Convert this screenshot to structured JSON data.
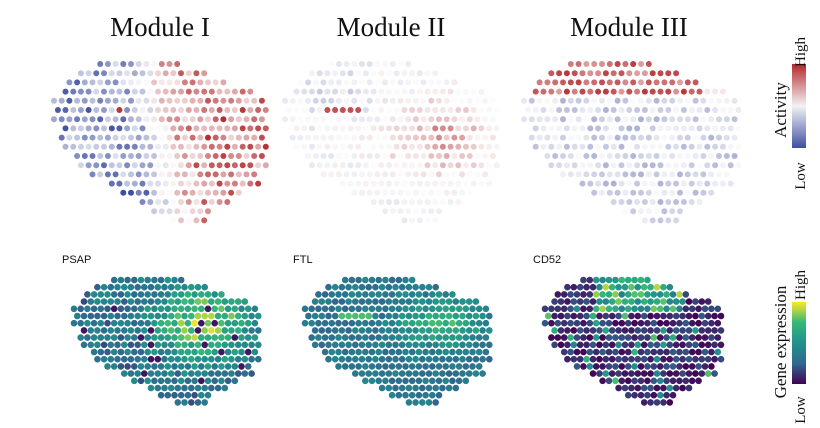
{
  "chart_data": [
    {
      "type": "scatter",
      "title": "Module I",
      "colorbar": "activity",
      "pattern": "module1"
    },
    {
      "type": "scatter",
      "title": "Module II",
      "colorbar": "activity",
      "pattern": "module2"
    },
    {
      "type": "scatter",
      "title": "Module III",
      "colorbar": "activity",
      "pattern": "module3"
    },
    {
      "type": "scatter",
      "title": "PSAP",
      "colorbar": "expression",
      "pattern": "psap"
    },
    {
      "type": "scatter",
      "title": "FTL",
      "colorbar": "expression",
      "pattern": "ftl"
    },
    {
      "type": "scatter",
      "title": "CD52",
      "colorbar": "expression",
      "pattern": "cd52"
    }
  ],
  "colorbars": {
    "activity": {
      "label": "Activity",
      "high": "High",
      "low": "Low",
      "colors": [
        "#3f4fa0",
        "#f4f2f4",
        "#b3292c"
      ]
    },
    "expression": {
      "label": "Gene expression",
      "high": "High",
      "low": "Low",
      "colors": [
        "#440154",
        "#31688e",
        "#21918c",
        "#35b779",
        "#fde725"
      ]
    }
  }
}
